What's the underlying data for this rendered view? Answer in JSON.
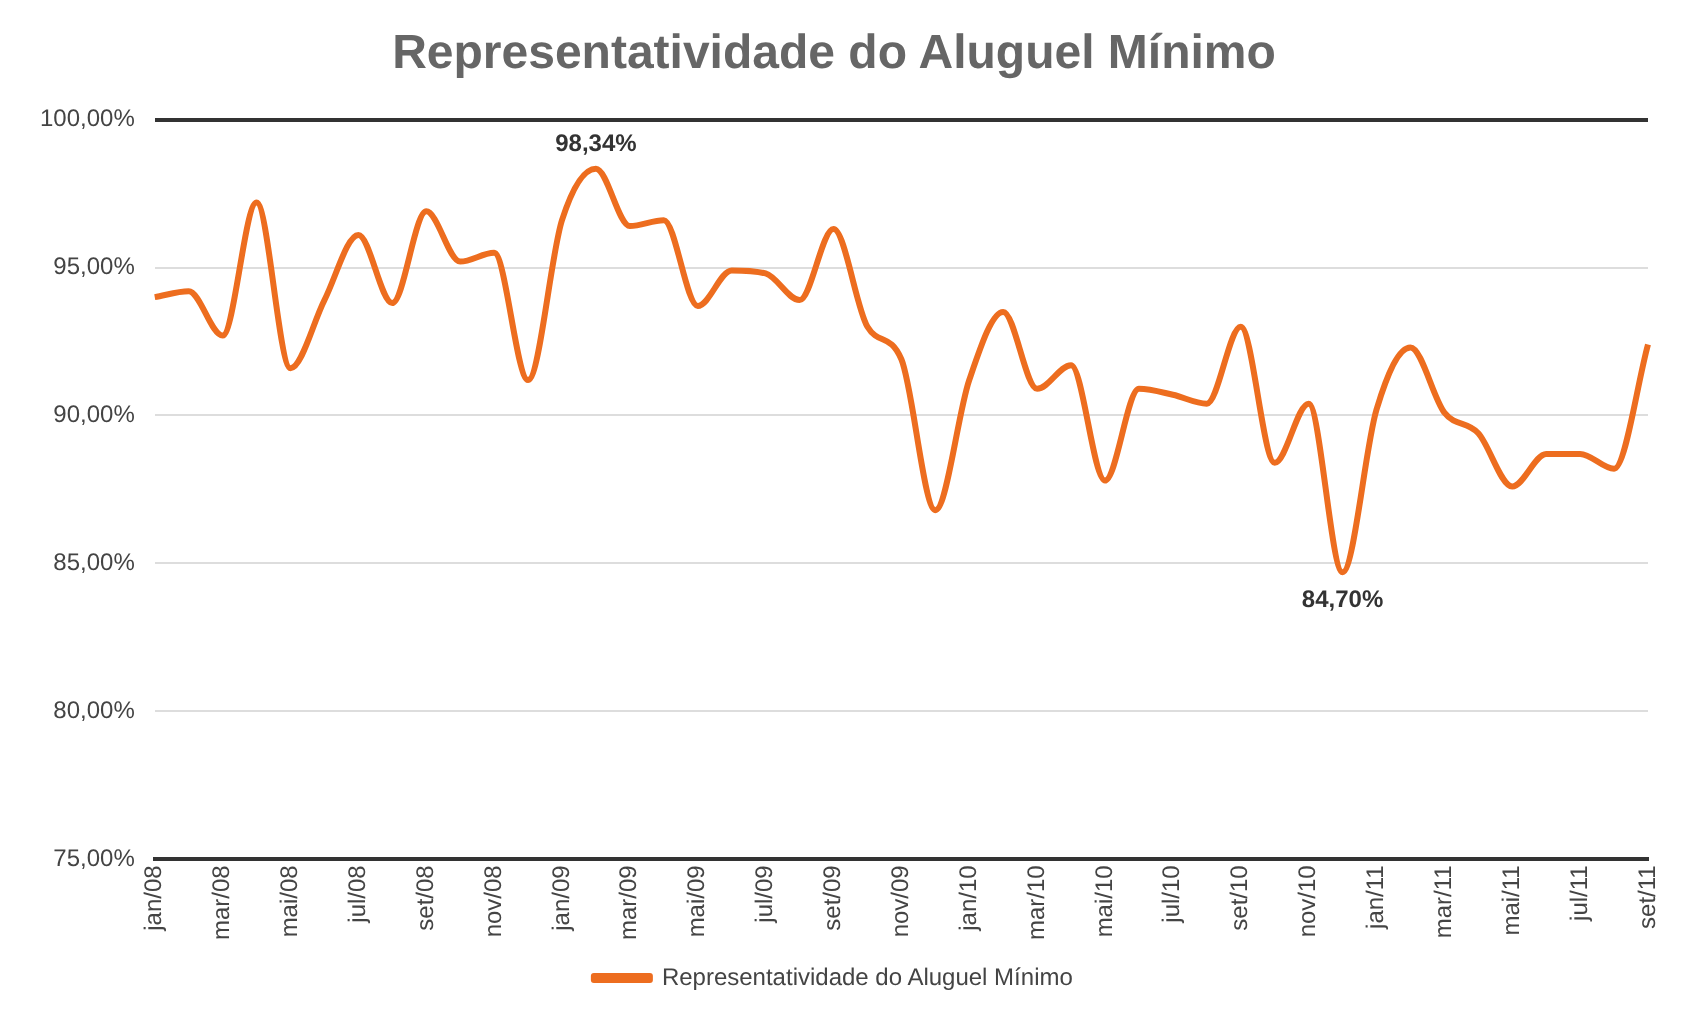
{
  "chart_data": {
    "type": "line",
    "title": "Representatividade do Aluguel Mínimo",
    "categories": [
      "jan/08",
      null,
      "mar/08",
      null,
      "mai/08",
      null,
      "jul/08",
      null,
      "set/08",
      null,
      "nov/08",
      null,
      "jan/09",
      null,
      "mar/09",
      null,
      "mai/09",
      null,
      "jul/09",
      null,
      "set/09",
      null,
      "nov/09",
      null,
      "jan/10",
      null,
      "mar/10",
      null,
      "mai/10",
      null,
      "jul/10",
      null,
      "set/10",
      null,
      "nov/10",
      null,
      "jan/11",
      null,
      "mar/11",
      null,
      "mai/11",
      null,
      "jul/11",
      null,
      "set/11"
    ],
    "series": [
      {
        "name": "Representatividade do Aluguel Mínimo",
        "color": "#ed6d1f",
        "values": [
          94.0,
          94.2,
          92.7,
          97.2,
          91.6,
          93.9,
          96.1,
          93.8,
          96.9,
          95.2,
          95.5,
          91.2,
          96.6,
          98.34,
          96.4,
          96.6,
          93.7,
          94.9,
          94.8,
          93.9,
          96.3,
          93.0,
          91.9,
          86.8,
          91.2,
          93.5,
          90.9,
          91.7,
          87.8,
          90.9,
          90.7,
          90.4,
          93.0,
          88.4,
          90.4,
          84.7,
          90.2,
          92.3,
          90.1,
          89.4,
          87.6,
          88.7,
          88.7,
          88.2,
          92.4
        ],
        "value_labels": [
          null,
          null,
          null,
          null,
          null,
          null,
          null,
          null,
          null,
          null,
          null,
          null,
          null,
          "98,34%",
          null,
          null,
          null,
          null,
          null,
          null,
          null,
          null,
          null,
          null,
          null,
          null,
          null,
          null,
          null,
          null,
          null,
          null,
          null,
          null,
          null,
          "84,70%",
          null,
          null,
          null,
          null,
          null,
          null,
          null,
          null,
          null
        ]
      }
    ],
    "ylim": [
      75,
      100
    ],
    "yticks": [
      {
        "value": 75,
        "label": "75,00%"
      },
      {
        "value": 80,
        "label": "80,00%"
      },
      {
        "value": 85,
        "label": "85,00%"
      },
      {
        "value": 90,
        "label": "90,00%"
      },
      {
        "value": 95,
        "label": "95,00%"
      },
      {
        "value": 100,
        "label": "100,00%"
      }
    ],
    "grid": "y",
    "legend": "bottom",
    "marker": "none",
    "line_style": "solid"
  }
}
